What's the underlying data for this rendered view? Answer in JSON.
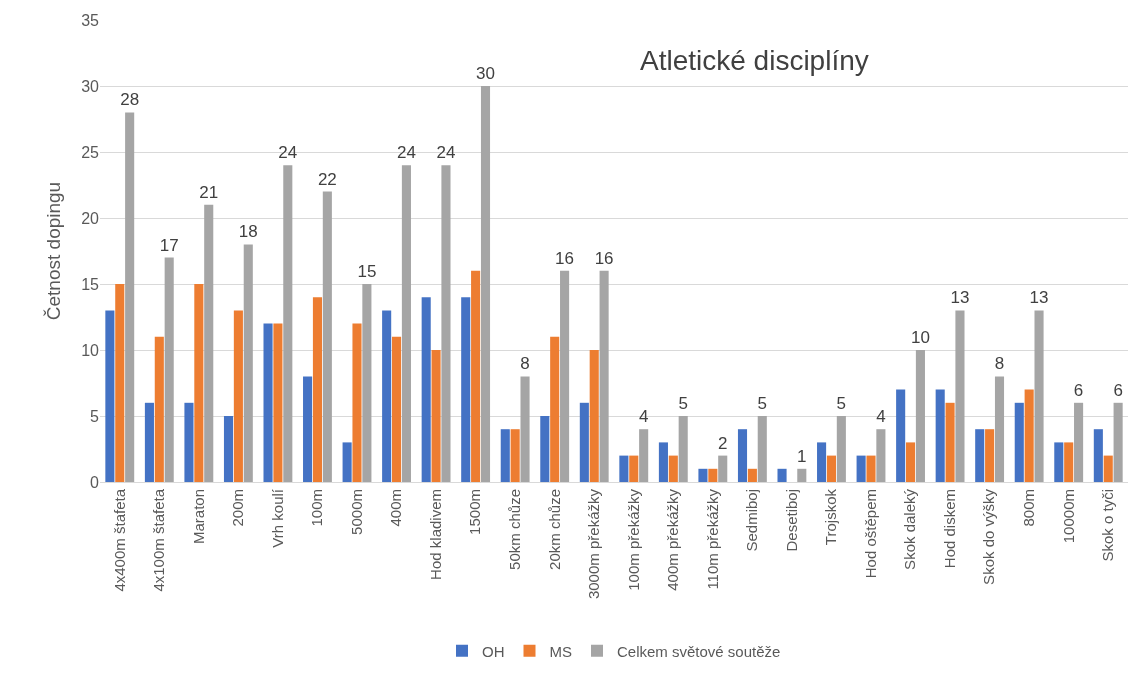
{
  "chart_data": {
    "type": "bar",
    "title": "Atletické disciplíny",
    "ylabel": "Četnost dopingu",
    "categories": [
      "4x400m štafeta",
      "4x100m štafeta",
      "Maraton",
      "200m",
      "Vrh koulí",
      "100m",
      "5000m",
      "400m",
      "Hod kladivem",
      "1500m",
      "50km chůze",
      "20km chůze",
      "3000m překážky",
      "100m překážky",
      "400m překážky",
      "110m překážky",
      "Sedmiboj",
      "Desetiboj",
      "Trojskok",
      "Hod oštěpem",
      "Skok daleký",
      "Hod diskem",
      "Skok do výšky",
      "800m",
      "10000m",
      "Skok o tyči"
    ],
    "series": [
      {
        "name": "OH",
        "color": "#4472c4",
        "values": [
          13,
          6,
          6,
          5,
          12,
          8,
          3,
          13,
          14,
          14,
          4,
          5,
          6,
          2,
          3,
          1,
          4,
          1,
          3,
          2,
          7,
          7,
          4,
          6,
          3,
          4
        ]
      },
      {
        "name": "MS",
        "color": "#ed7d31",
        "values": [
          15,
          11,
          15,
          13,
          12,
          14,
          12,
          11,
          10,
          16,
          4,
          11,
          10,
          2,
          2,
          1,
          1,
          0,
          2,
          2,
          3,
          6,
          4,
          7,
          3,
          2
        ]
      },
      {
        "name": "Celkem světové soutěže",
        "color": "#a5a5a5",
        "values": [
          28,
          17,
          21,
          18,
          24,
          22,
          15,
          24,
          24,
          30,
          8,
          16,
          16,
          4,
          5,
          2,
          5,
          1,
          5,
          4,
          10,
          13,
          8,
          13,
          6,
          6
        ],
        "value_labels": [
          "28",
          "17",
          "21",
          "18",
          "24",
          "22",
          "15",
          "24",
          "24",
          "30",
          "8",
          "16",
          "16",
          "4",
          "5",
          "2",
          "5",
          "1",
          "5",
          "4",
          "10",
          "13",
          "8",
          "13",
          "6",
          "6"
        ]
      }
    ],
    "ylim": [
      0,
      35
    ],
    "yticks": [
      0,
      5,
      10,
      15,
      20,
      25,
      30,
      35
    ],
    "grid": "y",
    "legend": "bottom"
  }
}
